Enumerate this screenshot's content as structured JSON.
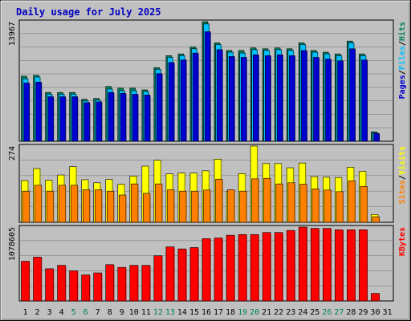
{
  "chart_data": {
    "type": "bar",
    "title": "Daily usage for July 2025",
    "categories": [
      "1",
      "2",
      "3",
      "4",
      "5",
      "6",
      "7",
      "8",
      "9",
      "10",
      "11",
      "12",
      "13",
      "14",
      "15",
      "16",
      "17",
      "18",
      "19",
      "20",
      "21",
      "22",
      "23",
      "24",
      "25",
      "26",
      "27",
      "28",
      "29",
      "30",
      "31"
    ],
    "weekend_days": [
      "5",
      "6",
      "12",
      "13",
      "19",
      "20",
      "26",
      "27"
    ],
    "panels": [
      {
        "id": "hits-files-pages",
        "max_label": "13967",
        "ylim": [
          0,
          13967
        ],
        "side_label_parts": [
          "Pages",
          "/",
          "Files",
          "/",
          "Hits"
        ],
        "series": [
          {
            "name": "Hits",
            "color": "#00805c",
            "values": [
              7600,
              7700,
              5700,
              5700,
              5700,
              4900,
              5000,
              6400,
              6200,
              6200,
              6000,
              8600,
              10000,
              10200,
              11000,
              13967,
              11500,
              10600,
              10600,
              10900,
              10800,
              10900,
              10800,
              11500,
              10600,
              10400,
              10200,
              11700,
              10200,
              1100,
              0
            ]
          },
          {
            "name": "Files",
            "color": "#00c0ff",
            "values": [
              7300,
              7500,
              5500,
              5500,
              5500,
              4700,
              4800,
              6100,
              5900,
              5900,
              5800,
              8400,
              9800,
              10000,
              10800,
              13700,
              11300,
              10400,
              10300,
              10700,
              10600,
              10700,
              10600,
              11300,
              10400,
              10200,
              10000,
              11500,
              10000,
              1000,
              0
            ]
          },
          {
            "name": "Pages",
            "color": "#0000d0",
            "values": [
              6800,
              6900,
              5200,
              5200,
              5200,
              4500,
              4600,
              5700,
              5600,
              5500,
              5400,
              7900,
              9200,
              9500,
              10300,
              12800,
              10700,
              9900,
              9800,
              10100,
              10000,
              10100,
              10000,
              10600,
              9800,
              9600,
              9400,
              10800,
              9500,
              900,
              0
            ]
          }
        ]
      },
      {
        "id": "visits-sites",
        "max_label": "274",
        "ylim": [
          0,
          274
        ],
        "side_label_parts": [
          "Sites",
          "/",
          "Visits"
        ],
        "series": [
          {
            "name": "Visits",
            "color": "#ffff00",
            "values": [
              150,
              193,
              151,
              170,
              200,
              153,
              142,
              154,
              137,
              166,
              202,
              223,
              174,
              177,
              177,
              185,
              227,
              112,
              175,
              274,
              211,
              211,
              196,
              213,
              164,
              162,
              161,
              198,
              183,
              28,
              0
            ]
          },
          {
            "name": "Sites",
            "color": "#ff8000",
            "values": [
              112,
              133,
              112,
              133,
              133,
              117,
              117,
              112,
              98,
              138,
              104,
              138,
              117,
              112,
              112,
              116,
              155,
              117,
              112,
              156,
              158,
              138,
              142,
              137,
              120,
              116,
              110,
              149,
              129,
              20,
              0
            ]
          }
        ]
      },
      {
        "id": "kbytes",
        "max_label": "1078605",
        "ylim": [
          0,
          1078605
        ],
        "side_label_parts": [
          "KBytes"
        ],
        "series": [
          {
            "name": "KBytes",
            "color": "#ff0000",
            "values": [
              580000,
              640000,
              470000,
              520000,
              440000,
              380000,
              410000,
              530000,
              490000,
              520000,
              520000,
              660000,
              790000,
              760000,
              780000,
              910000,
              920000,
              960000,
              970000,
              970000,
              1000000,
              1000000,
              1030000,
              1078605,
              1060000,
              1060000,
              1040000,
              1040000,
              1040000,
              110000,
              0
            ]
          }
        ]
      }
    ],
    "colors": {
      "background": "#c0c0c0",
      "plot_background": "#c0c0c0",
      "grid": "#808080",
      "title": "#0000c0",
      "weekday_label": "#000000",
      "weekend_label": "#00805c"
    },
    "grid": true
  }
}
